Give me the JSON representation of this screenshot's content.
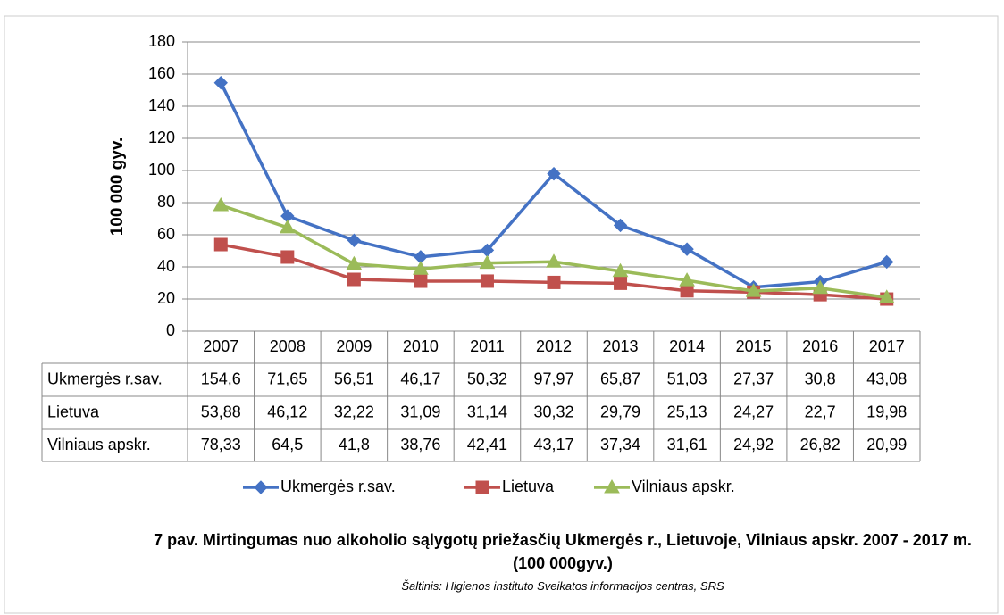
{
  "chart_data": {
    "type": "line",
    "title": "7 pav. Mirtingumas nuo alkoholio sąlygotų priežasčių Ukmergės r., Lietuvoje, Vilniaus apskr. 2007 - 2017 m. (100 000gyv.)",
    "source": "Šaltinis: Higienos instituto Sveikatos informacijos centras, SRS",
    "y_label": "100 000 gyv.",
    "categories": [
      "2007",
      "2008",
      "2009",
      "2010",
      "2011",
      "2012",
      "2013",
      "2014",
      "2015",
      "2016",
      "2017"
    ],
    "series": [
      {
        "name": "Ukmergės r.sav.",
        "color": "#4472c4",
        "marker": "diamond",
        "values": [
          154.6,
          71.65,
          56.51,
          46.17,
          50.32,
          97.97,
          65.87,
          51.03,
          27.37,
          30.8,
          43.08
        ],
        "value_labels": [
          "154,6",
          "71,65",
          "56,51",
          "46,17",
          "50,32",
          "97,97",
          "65,87",
          "51,03",
          "27,37",
          "30,8",
          "43,08"
        ]
      },
      {
        "name": "Lietuva",
        "color": "#c0504d",
        "marker": "square",
        "values": [
          53.88,
          46.12,
          32.22,
          31.09,
          31.14,
          30.32,
          29.79,
          25.13,
          24.27,
          22.7,
          19.98
        ],
        "value_labels": [
          "53,88",
          "46,12",
          "32,22",
          "31,09",
          "31,14",
          "30,32",
          "29,79",
          "25,13",
          "24,27",
          "22,7",
          "19,98"
        ]
      },
      {
        "name": "Vilniaus apskr.",
        "color": "#9bbb59",
        "marker": "triangle",
        "values": [
          78.33,
          64.5,
          41.8,
          38.76,
          42.41,
          43.17,
          37.34,
          31.61,
          24.92,
          26.82,
          20.99
        ],
        "value_labels": [
          "78,33",
          "64,5",
          "41,8",
          "38,76",
          "42,41",
          "43,17",
          "37,34",
          "31,61",
          "24,92",
          "26,82",
          "20,99"
        ]
      }
    ],
    "ylim": [
      0,
      180
    ],
    "yticks": [
      0,
      20,
      40,
      60,
      80,
      100,
      120,
      140,
      160,
      180
    ],
    "grid": true
  }
}
